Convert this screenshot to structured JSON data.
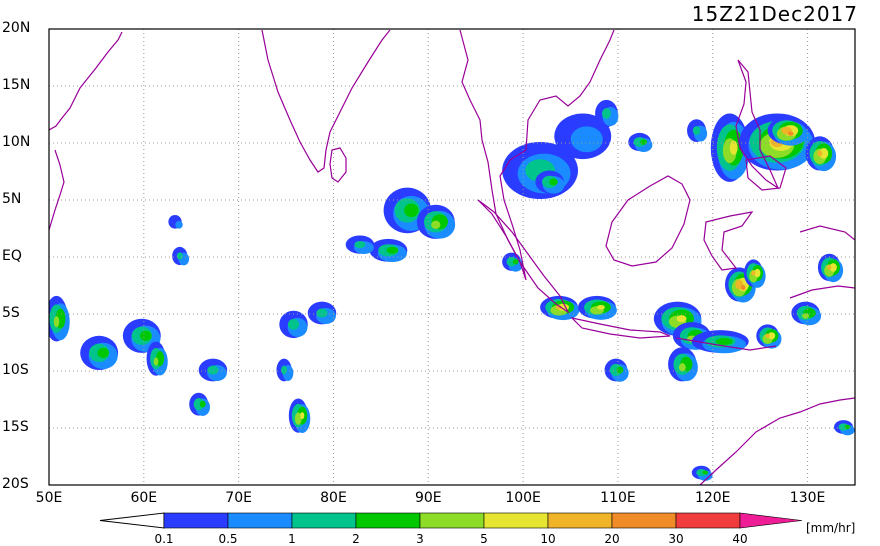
{
  "title": "15Z21Dec2017",
  "map": {
    "lon_range": [
      50,
      135
    ],
    "lat_range": [
      -20,
      20
    ],
    "lat_labels": [
      {
        "text": "20N",
        "lat": 20
      },
      {
        "text": "15N",
        "lat": 15
      },
      {
        "text": "10N",
        "lat": 10
      },
      {
        "text": "5N",
        "lat": 5
      },
      {
        "text": "EQ",
        "lat": 0
      },
      {
        "text": "5S",
        "lat": -5
      },
      {
        "text": "10S",
        "lat": -10
      },
      {
        "text": "15S",
        "lat": -15
      },
      {
        "text": "20S",
        "lat": -20
      }
    ],
    "lon_labels": [
      {
        "text": "50E",
        "lon": 50
      },
      {
        "text": "60E",
        "lon": 60
      },
      {
        "text": "70E",
        "lon": 70
      },
      {
        "text": "80E",
        "lon": 80
      },
      {
        "text": "90E",
        "lon": 90
      },
      {
        "text": "100E",
        "lon": 100
      },
      {
        "text": "110E",
        "lon": 110
      },
      {
        "text": "120E",
        "lon": 120
      },
      {
        "text": "130E",
        "lon": 130
      }
    ],
    "coastline_color": "#990099",
    "grid": "dotted"
  },
  "colorbar": {
    "unit": "[mm/hr]",
    "levels": [
      "0.1",
      "0.5",
      "1",
      "2",
      "3",
      "5",
      "10",
      "20",
      "30",
      "40"
    ],
    "colors": [
      "#2a3cff",
      "#1a8cff",
      "#00c48c",
      "#00c800",
      "#8cdc28",
      "#e6e632",
      "#f0b428",
      "#f08c28",
      "#f03c3c",
      "#f01e96"
    ]
  },
  "precip_regions": [
    {
      "lon": 102,
      "lat": 7.5,
      "rlon": 4,
      "rlat": 2.5,
      "level": 2
    },
    {
      "lon": 106.5,
      "lat": 10.5,
      "rlon": 3,
      "rlat": 2,
      "level": 1
    },
    {
      "lon": 103,
      "lat": 6.5,
      "rlon": 1.5,
      "rlat": 1,
      "level": 3
    },
    {
      "lon": 122,
      "lat": 9.5,
      "rlon": 2,
      "rlat": 3,
      "level": 5
    },
    {
      "lon": 127,
      "lat": 10,
      "rlon": 4,
      "rlat": 2.5,
      "level": 6
    },
    {
      "lon": 128,
      "lat": 11,
      "rlon": 2,
      "rlat": 1.2,
      "level": 7
    },
    {
      "lon": 131.5,
      "lat": 9,
      "rlon": 1.5,
      "rlat": 1.5,
      "level": 6
    },
    {
      "lon": 88,
      "lat": 4,
      "rlon": 2.5,
      "rlat": 2,
      "level": 3
    },
    {
      "lon": 91,
      "lat": 3,
      "rlon": 2,
      "rlat": 1.5,
      "level": 4
    },
    {
      "lon": 86,
      "lat": 0.5,
      "rlon": 2,
      "rlat": 1,
      "level": 3
    },
    {
      "lon": 83,
      "lat": 1,
      "rlon": 1.5,
      "rlat": 0.8,
      "level": 2
    },
    {
      "lon": 104,
      "lat": -4.5,
      "rlon": 2,
      "rlat": 1,
      "level": 6
    },
    {
      "lon": 108,
      "lat": -4.5,
      "rlon": 2,
      "rlat": 1,
      "level": 5
    },
    {
      "lon": 116.5,
      "lat": -5.5,
      "rlon": 2.5,
      "rlat": 1.5,
      "level": 5
    },
    {
      "lon": 118,
      "lat": -7,
      "rlon": 2,
      "rlat": 1.2,
      "level": 4
    },
    {
      "lon": 123,
      "lat": -2.5,
      "rlon": 1.5,
      "rlat": 1.5,
      "level": 7
    },
    {
      "lon": 121,
      "lat": -7.5,
      "rlon": 3,
      "rlat": 1,
      "level": 3
    },
    {
      "lon": 117,
      "lat": -9.5,
      "rlon": 1.5,
      "rlat": 1.5,
      "level": 4
    },
    {
      "lon": 110,
      "lat": -10,
      "rlon": 1.2,
      "rlat": 1,
      "level": 3
    },
    {
      "lon": 132.5,
      "lat": -1,
      "rlon": 1.2,
      "rlat": 1.2,
      "level": 6
    },
    {
      "lon": 130,
      "lat": -5,
      "rlon": 1.5,
      "rlat": 1,
      "level": 4
    },
    {
      "lon": 51,
      "lat": -5.5,
      "rlon": 1.2,
      "rlat": 2,
      "level": 4
    },
    {
      "lon": 55.5,
      "lat": -8.5,
      "rlon": 2,
      "rlat": 1.5,
      "level": 3
    },
    {
      "lon": 60,
      "lat": -7,
      "rlon": 2,
      "rlat": 1.5,
      "level": 3
    },
    {
      "lon": 61.5,
      "lat": -9,
      "rlon": 1,
      "rlat": 1.5,
      "level": 4
    },
    {
      "lon": 67.5,
      "lat": -10,
      "rlon": 1.5,
      "rlat": 1,
      "level": 2
    },
    {
      "lon": 66,
      "lat": -13,
      "rlon": 1,
      "rlat": 1,
      "level": 3
    },
    {
      "lon": 76,
      "lat": -6,
      "rlon": 1.5,
      "rlat": 1.2,
      "level": 2
    },
    {
      "lon": 79,
      "lat": -5,
      "rlon": 1.5,
      "rlat": 1,
      "level": 2
    },
    {
      "lon": 76.5,
      "lat": -14,
      "rlon": 1,
      "rlat": 1.5,
      "level": 5
    },
    {
      "lon": 75,
      "lat": -10,
      "rlon": 0.8,
      "rlat": 1,
      "level": 2
    },
    {
      "lon": 64,
      "lat": 0,
      "rlon": 0.8,
      "rlat": 0.8,
      "level": 2
    },
    {
      "lon": 63.5,
      "lat": 3,
      "rlon": 0.7,
      "rlat": 0.6,
      "level": 1
    },
    {
      "lon": 99,
      "lat": -0.5,
      "rlon": 1,
      "rlat": 0.8,
      "level": 3
    },
    {
      "lon": 112.5,
      "lat": 10,
      "rlon": 1.2,
      "rlat": 0.8,
      "level": 3
    },
    {
      "lon": 118.5,
      "lat": 11,
      "rlon": 1,
      "rlat": 1,
      "level": 2
    },
    {
      "lon": 109,
      "lat": 12.5,
      "rlon": 1.2,
      "rlat": 1.2,
      "level": 2
    },
    {
      "lon": 124.5,
      "lat": -1.5,
      "rlon": 1,
      "rlat": 1.2,
      "level": 6
    },
    {
      "lon": 126,
      "lat": -7,
      "rlon": 1.2,
      "rlat": 1,
      "level": 6
    },
    {
      "lon": 134,
      "lat": -15,
      "rlon": 1,
      "rlat": 0.6,
      "level": 3
    },
    {
      "lon": 119,
      "lat": -19,
      "rlon": 1,
      "rlat": 0.6,
      "level": 3
    }
  ]
}
